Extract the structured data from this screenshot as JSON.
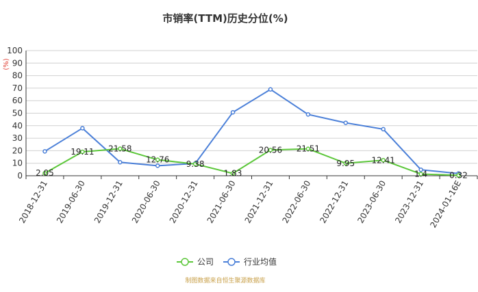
{
  "chart_data": {
    "type": "line",
    "title": "市销率(TTM)历史分位(%)",
    "ylabel": "(%)",
    "xlabel": "",
    "ylim": [
      0,
      100
    ],
    "yticks": [
      0,
      10,
      20,
      30,
      40,
      50,
      60,
      70,
      80,
      90,
      100
    ],
    "grid": true,
    "legend_position": "bottom",
    "categories": [
      "2018-12-31",
      "2019-06-30",
      "2019-12-31",
      "2020-06-30",
      "2020-12-31",
      "2021-06-30",
      "2021-12-31",
      "2022-06-30",
      "2022-12-31",
      "2023-06-30",
      "2023-12-31",
      "2024-01-16E"
    ],
    "series": [
      {
        "name": "公司",
        "color": "#5cc73a",
        "values": [
          2.05,
          19.11,
          21.58,
          12.76,
          9.38,
          1.83,
          20.56,
          21.51,
          9.95,
          12.41,
          1.4,
          0.32
        ],
        "labels": [
          "2.05",
          "19.11",
          "21.58",
          "12.76",
          "9.38",
          "1.83",
          "20.56",
          "21.51",
          "9.95",
          "12.41",
          "1.4",
          "0.32"
        ]
      },
      {
        "name": "行业均值",
        "color": "#4a7fd8",
        "values": [
          19.5,
          38,
          10.8,
          8,
          9.8,
          50.7,
          69,
          49,
          42.3,
          37.2,
          4.8,
          1.8
        ]
      }
    ],
    "source": "制图数据来自恒生聚源数据库"
  }
}
